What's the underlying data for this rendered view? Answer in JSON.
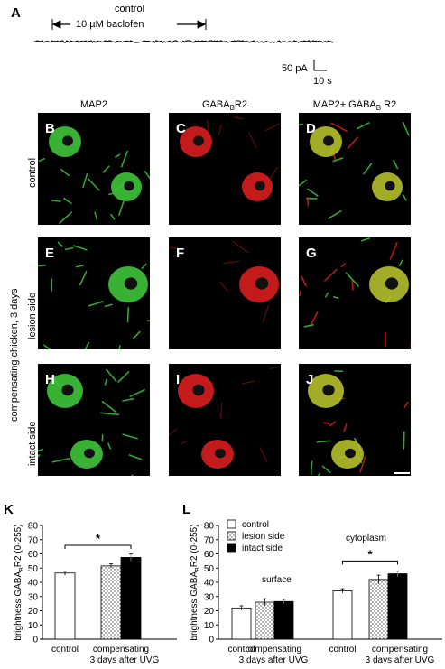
{
  "panel_a": {
    "label": "A",
    "title": "control",
    "drug_label": "10 µM baclofen",
    "scale_current": "50 pA",
    "scale_time": "10 s"
  },
  "micrographs": {
    "columns": [
      "MAP2",
      "GABA",
      "MAP2+ GABA"
    ],
    "column_sub": [
      "",
      "B",
      "B"
    ],
    "column_suffix": [
      "",
      "R2",
      " R2"
    ],
    "row_labels": {
      "control": "control",
      "lesion": "lesion side",
      "intact": "intact side",
      "group": "compensating chicken, 3 days"
    },
    "panel_letters": [
      "B",
      "C",
      "D",
      "E",
      "F",
      "G",
      "H",
      "I",
      "J"
    ],
    "channel_colors": {
      "green": "#3ec43a",
      "red": "#d81e1e",
      "merge": "#b5bf2a"
    }
  },
  "chart_data": [
    {
      "panel": "K",
      "type": "bar",
      "ylabel": "brightness GABA",
      "ylabel_sub": "B",
      "ylabel_suffix": "R2 (0-255)",
      "ylim": [
        0,
        80
      ],
      "yticks": [
        "0",
        "10",
        "20",
        "30",
        "40",
        "50",
        "60",
        "70",
        "80"
      ],
      "groups": [
        "control",
        "compensating"
      ],
      "group_sub": "3 days after UVG",
      "bars": [
        {
          "group": 0,
          "fill": "white",
          "value": 46.5,
          "err": 1.5
        },
        {
          "group": 1,
          "fill": "dots",
          "value": 51.5,
          "err": 1.5
        },
        {
          "group": 1,
          "fill": "black",
          "value": 57.5,
          "err": 2.5
        }
      ],
      "significance": "*"
    },
    {
      "panel": "L",
      "type": "bar",
      "ylabel": "brightness GABA",
      "ylabel_sub": "B",
      "ylabel_suffix": "R2 (0-255)",
      "ylim": [
        0,
        80
      ],
      "yticks": [
        "0",
        "10",
        "20",
        "30",
        "40",
        "50",
        "60",
        "70",
        "80"
      ],
      "legend": [
        {
          "name": "control",
          "fill": "white"
        },
        {
          "name": "lesion side",
          "fill": "dots"
        },
        {
          "name": "intact side",
          "fill": "black"
        }
      ],
      "region_labels": [
        "surface",
        "cytoplasm"
      ],
      "groups": [
        "control",
        "compensating",
        "control",
        "compensating"
      ],
      "group_sub": "3 days after UVG",
      "bars": [
        {
          "group": 0,
          "fill": "white",
          "value": 22,
          "err": 1.5
        },
        {
          "group": 1,
          "fill": "dots",
          "value": 26,
          "err": 2.5
        },
        {
          "group": 1,
          "fill": "black",
          "value": 26.5,
          "err": 1.5
        },
        {
          "group": 2,
          "fill": "white",
          "value": 34,
          "err": 1.5
        },
        {
          "group": 3,
          "fill": "dots",
          "value": 42,
          "err": 3
        },
        {
          "group": 3,
          "fill": "black",
          "value": 46,
          "err": 2
        }
      ],
      "significance": "*"
    }
  ]
}
